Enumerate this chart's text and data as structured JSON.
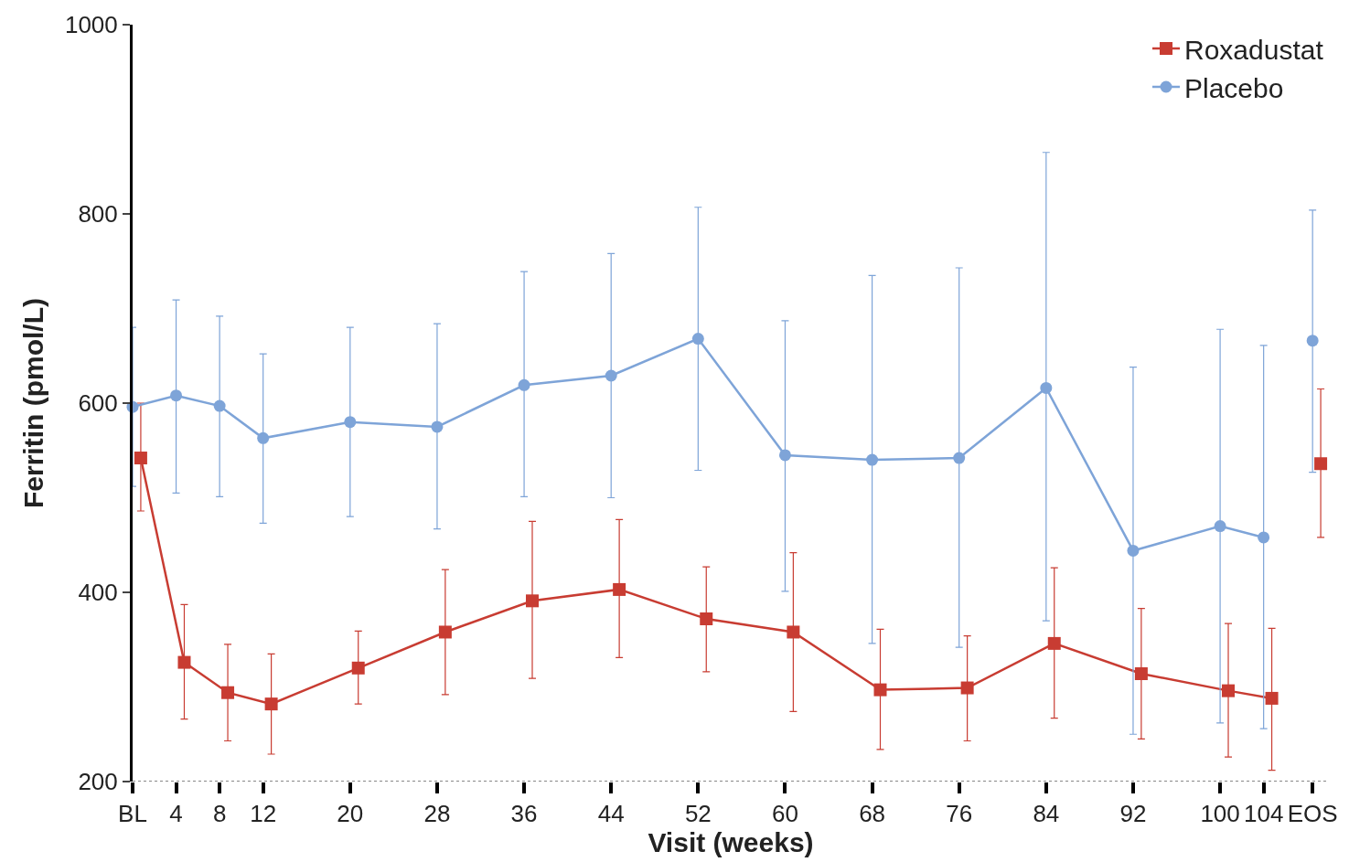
{
  "chart_data": {
    "type": "line",
    "xlabel": "Visit (weeks)",
    "ylabel": "Ferritin (pmol/L)",
    "xlim": [
      0,
      110
    ],
    "xticks": [
      {
        "value": 0,
        "label": "BL"
      },
      4,
      8,
      12,
      20,
      28,
      36,
      44,
      52,
      60,
      68,
      76,
      84,
      92,
      100,
      104,
      {
        "value": 108.5,
        "label": "EOS"
      }
    ],
    "ylim": [
      200,
      1000
    ],
    "yticks": [
      200,
      400,
      600,
      800,
      1000
    ],
    "legend": "top right",
    "line_style": "solid",
    "ref_lines": [
      {
        "axis": "y",
        "value": 200,
        "color": "#888888",
        "line_style": "dotted"
      }
    ],
    "series": [
      {
        "name": "Roxadustat",
        "color": "#c83c32",
        "marker": "square",
        "x": [
          0.75,
          4.75,
          8.75,
          12.75,
          20.75,
          28.75,
          36.75,
          44.75,
          52.75,
          60.75,
          68.75,
          76.75,
          84.75,
          92.75,
          100.75,
          104.75,
          107,
          109.25
        ],
        "values": [
          542,
          326,
          294,
          282,
          320,
          358,
          391,
          403,
          372,
          358,
          297,
          299,
          346,
          314,
          296,
          288,
          null,
          536
        ],
        "errors": [
          [
            486,
            600
          ],
          [
            266,
            387
          ],
          [
            243,
            345
          ],
          [
            229,
            335
          ],
          [
            282,
            359
          ],
          [
            292,
            424
          ],
          [
            309,
            475
          ],
          [
            331,
            477
          ],
          [
            316,
            427
          ],
          [
            274,
            442
          ],
          [
            234,
            361
          ],
          [
            243,
            354
          ],
          [
            267,
            426
          ],
          [
            245,
            383
          ],
          [
            226,
            367
          ],
          [
            212,
            362
          ],
          null,
          [
            458,
            615
          ]
        ]
      },
      {
        "name": "Placebo",
        "color": "#7ea4d8",
        "marker": "circle",
        "x": [
          0,
          4,
          8,
          12,
          20,
          28,
          36,
          44,
          52,
          60,
          68,
          76,
          84,
          92,
          100,
          104,
          106,
          108.5
        ],
        "values": [
          596,
          608,
          597,
          563,
          580,
          575,
          619,
          629,
          668,
          545,
          540,
          542,
          616,
          444,
          470,
          458,
          null,
          666
        ],
        "errors": [
          [
            512,
            680
          ],
          [
            505,
            709
          ],
          [
            501,
            692
          ],
          [
            473,
            652
          ],
          [
            480,
            680
          ],
          [
            467,
            684
          ],
          [
            501,
            739
          ],
          [
            500,
            758
          ],
          [
            529,
            807
          ],
          [
            401,
            687
          ],
          [
            346,
            735
          ],
          [
            342,
            743
          ],
          [
            370,
            865
          ],
          [
            250,
            638
          ],
          [
            262,
            678
          ],
          [
            256,
            661
          ],
          null,
          [
            527,
            804
          ]
        ]
      }
    ]
  }
}
